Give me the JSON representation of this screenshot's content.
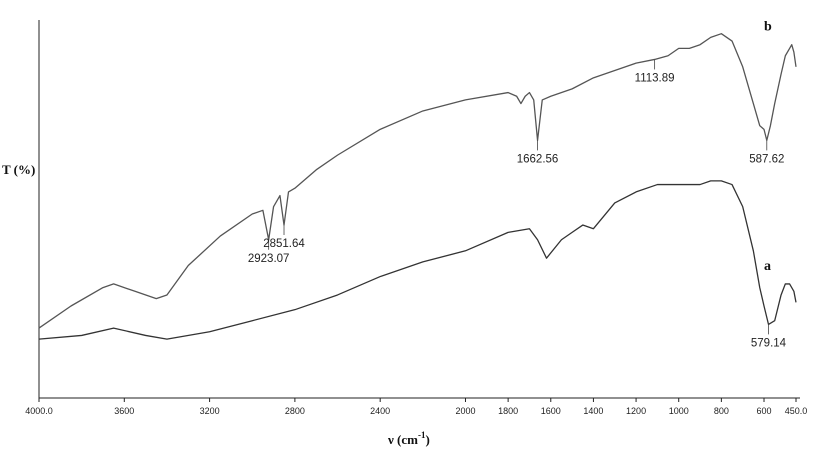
{
  "chart_data": {
    "type": "line",
    "xlabel": "ν (cm",
    "xlabel_sup": "-1",
    "xlabel_close": ")",
    "ylabel": "T (%)",
    "xlim": [
      4000,
      450
    ],
    "x_reversed": true,
    "ylim": [
      0,
      100
    ],
    "grid": false,
    "x_ticks": [
      "4000.0",
      "3600",
      "3200",
      "2800",
      "2400",
      "2000",
      "1800",
      "1600",
      "1400",
      "1200",
      "1000",
      "800",
      "600",
      "450.0"
    ],
    "x_tick_values": [
      4000,
      3600,
      3200,
      2800,
      2400,
      2000,
      1800,
      1600,
      1400,
      1200,
      1000,
      800,
      600,
      450
    ],
    "series": [
      {
        "name": "b",
        "color": "#555555",
        "x": [
          4000,
          3850,
          3700,
          3650,
          3550,
          3450,
          3400,
          3300,
          3150,
          3000,
          2950,
          2923,
          2900,
          2870,
          2851,
          2830,
          2800,
          2700,
          2600,
          2400,
          2200,
          2000,
          1800,
          1760,
          1740,
          1720,
          1700,
          1680,
          1662,
          1640,
          1600,
          1500,
          1400,
          1300,
          1200,
          1113,
          1050,
          1000,
          950,
          900,
          850,
          800,
          750,
          700,
          650,
          620,
          600,
          587,
          570,
          550,
          520,
          500,
          480,
          470,
          460,
          450
        ],
        "y": [
          19,
          25,
          30,
          31,
          29,
          27,
          28,
          36,
          44,
          50,
          51,
          43,
          52,
          55,
          47,
          56,
          57,
          62,
          66,
          73,
          78,
          81,
          83,
          82,
          80,
          82,
          83,
          81,
          70,
          81,
          82,
          84,
          87,
          89,
          91,
          92,
          93,
          95,
          95,
          96,
          98,
          99,
          97,
          90,
          80,
          74,
          73,
          70,
          74,
          80,
          88,
          93,
          95,
          96,
          94,
          90
        ]
      },
      {
        "name": "a",
        "color": "#333333",
        "x": [
          4000,
          3800,
          3650,
          3500,
          3400,
          3200,
          3000,
          2800,
          2600,
          2400,
          2200,
          2000,
          1800,
          1700,
          1662,
          1620,
          1550,
          1500,
          1450,
          1400,
          1300,
          1200,
          1100,
          1000,
          900,
          850,
          800,
          750,
          700,
          650,
          620,
          600,
          579,
          550,
          520,
          500,
          480,
          460,
          450
        ],
        "y": [
          16,
          17,
          19,
          17,
          16,
          18,
          21,
          24,
          28,
          33,
          37,
          40,
          45,
          46,
          43,
          38,
          43,
          45,
          47,
          46,
          53,
          56,
          58,
          58,
          58,
          59,
          59,
          58,
          52,
          40,
          30,
          25,
          20,
          21,
          28,
          31,
          31,
          29,
          26
        ]
      }
    ],
    "annotations": [
      {
        "text": "2923.07",
        "x": 2923,
        "series": "b"
      },
      {
        "text": "2851.64",
        "x": 2851,
        "series": "b"
      },
      {
        "text": "1662.56",
        "x": 1662,
        "series": "b"
      },
      {
        "text": "1113.89",
        "x": 1113,
        "series": "b"
      },
      {
        "text": "587.62",
        "x": 587,
        "series": "b"
      },
      {
        "text": "579.14",
        "x": 579,
        "series": "a"
      }
    ],
    "series_labels": [
      {
        "text": "b",
        "series": "b"
      },
      {
        "text": "a",
        "series": "a"
      }
    ]
  }
}
